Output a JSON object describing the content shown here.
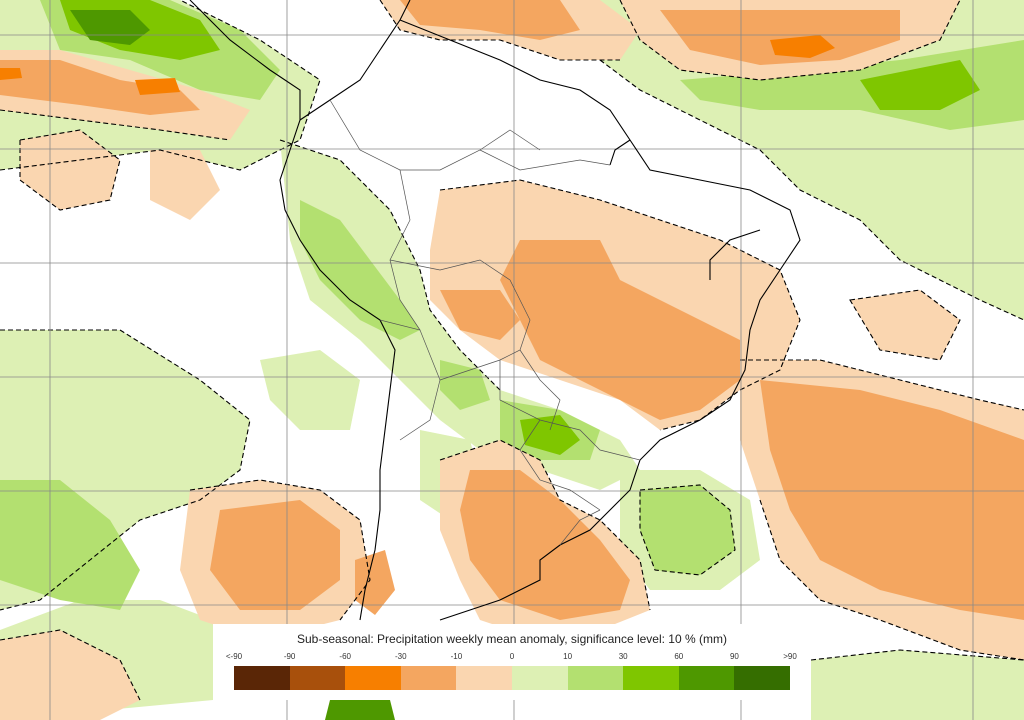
{
  "legend": {
    "title": "Sub-seasonal: Precipitation weekly mean anomaly, significance level: 10 % (mm)",
    "ticks": [
      "<-90",
      "-90",
      "-60",
      "-30",
      "-10",
      "0",
      "10",
      "30",
      "60",
      "90",
      ">90"
    ],
    "colors": [
      "#5a2606",
      "#a8500c",
      "#f77f00",
      "#f4a660",
      "#fad6b0",
      "#ddf0b4",
      "#b3e070",
      "#7fc600",
      "#4e9800",
      "#356e00"
    ]
  },
  "colors": {
    "ocean_background": "#ffffff",
    "orange_light": "#fad6b0",
    "orange_medium": "#f4a660",
    "orange_strong": "#f77f00",
    "green_light": "#ddf0b4",
    "green_medium": "#b3e070",
    "green_strong": "#7fc600",
    "green_dark": "#4e9800",
    "grid": "#888888",
    "coastline": "#000000"
  }
}
